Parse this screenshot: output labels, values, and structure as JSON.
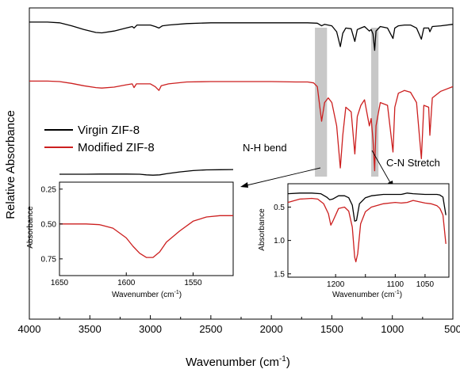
{
  "chart_data": [
    {
      "type": "line",
      "xlabel": "Wavenumber (cm",
      "xlabel_sup": "-1",
      "xlabel_close": ")",
      "ylabel": "Relative Absorbance",
      "xlim": [
        4000,
        500
      ],
      "x_ticks": [
        4000,
        3500,
        3000,
        2500,
        2000,
        1500,
        1000,
        500
      ],
      "y_ticks_shown": false,
      "legend_position": "left",
      "series": [
        {
          "name": "Virgin ZIF-8",
          "color": "#000000",
          "points": [
            [
              4000,
              0.98
            ],
            [
              3850,
              0.98
            ],
            [
              3750,
              0.97
            ],
            [
              3650,
              0.93
            ],
            [
              3550,
              0.88
            ],
            [
              3450,
              0.84
            ],
            [
              3400,
              0.835
            ],
            [
              3300,
              0.86
            ],
            [
              3200,
              0.9
            ],
            [
              3150,
              0.92
            ],
            [
              3135,
              0.9
            ],
            [
              3110,
              0.94
            ],
            [
              3000,
              0.94
            ],
            [
              2960,
              0.92
            ],
            [
              2929,
              0.9
            ],
            [
              2900,
              0.93
            ],
            [
              2850,
              0.94
            ],
            [
              2700,
              0.96
            ],
            [
              2500,
              0.97
            ],
            [
              2300,
              0.97
            ],
            [
              2000,
              0.97
            ],
            [
              1800,
              0.97
            ],
            [
              1700,
              0.97
            ],
            [
              1620,
              0.965
            ],
            [
              1585,
              0.93
            ],
            [
              1560,
              0.95
            ],
            [
              1500,
              0.93
            ],
            [
              1460,
              0.85
            ],
            [
              1430,
              0.65
            ],
            [
              1410,
              0.83
            ],
            [
              1385,
              0.9
            ],
            [
              1340,
              0.89
            ],
            [
              1310,
              0.72
            ],
            [
              1290,
              0.88
            ],
            [
              1260,
              0.9
            ],
            [
              1230,
              0.92
            ],
            [
              1190,
              0.86
            ],
            [
              1175,
              0.88
            ],
            [
              1160,
              0.82
            ],
            [
              1146,
              0.6
            ],
            [
              1135,
              0.86
            ],
            [
              1100,
              0.92
            ],
            [
              1040,
              0.9
            ],
            [
              995,
              0.76
            ],
            [
              980,
              0.9
            ],
            [
              950,
              0.93
            ],
            [
              900,
              0.94
            ],
            [
              850,
              0.94
            ],
            [
              800,
              0.9
            ],
            [
              760,
              0.75
            ],
            [
              740,
              0.9
            ],
            [
              700,
              0.9
            ],
            [
              690,
              0.85
            ],
            [
              670,
              0.92
            ],
            [
              600,
              0.93
            ],
            [
              500,
              0.95
            ]
          ]
        },
        {
          "name": "Modified ZIF-8",
          "color": "#cc1f1f",
          "points": [
            [
              4000,
              0.98
            ],
            [
              3850,
              0.98
            ],
            [
              3750,
              0.975
            ],
            [
              3650,
              0.955
            ],
            [
              3550,
              0.93
            ],
            [
              3450,
              0.91
            ],
            [
              3400,
              0.905
            ],
            [
              3300,
              0.915
            ],
            [
              3200,
              0.94
            ],
            [
              3150,
              0.95
            ],
            [
              3135,
              0.91
            ],
            [
              3115,
              0.95
            ],
            [
              3000,
              0.95
            ],
            [
              2960,
              0.92
            ],
            [
              2929,
              0.88
            ],
            [
              2910,
              0.93
            ],
            [
              2850,
              0.95
            ],
            [
              2700,
              0.97
            ],
            [
              2500,
              0.975
            ],
            [
              2300,
              0.975
            ],
            [
              2000,
              0.975
            ],
            [
              1800,
              0.97
            ],
            [
              1700,
              0.97
            ],
            [
              1650,
              0.96
            ],
            [
              1620,
              0.92
            ],
            [
              1585,
              0.55
            ],
            [
              1560,
              0.75
            ],
            [
              1530,
              0.8
            ],
            [
              1500,
              0.75
            ],
            [
              1460,
              0.5
            ],
            [
              1430,
              0.05
            ],
            [
              1410,
              0.4
            ],
            [
              1385,
              0.7
            ],
            [
              1340,
              0.65
            ],
            [
              1310,
              0.2
            ],
            [
              1290,
              0.6
            ],
            [
              1260,
              0.72
            ],
            [
              1230,
              0.78
            ],
            [
              1190,
              0.5
            ],
            [
              1175,
              0.58
            ],
            [
              1160,
              0.35
            ],
            [
              1146,
              0.02
            ],
            [
              1135,
              0.5
            ],
            [
              1100,
              0.75
            ],
            [
              1040,
              0.72
            ],
            [
              995,
              0.22
            ],
            [
              980,
              0.7
            ],
            [
              950,
              0.85
            ],
            [
              900,
              0.88
            ],
            [
              850,
              0.86
            ],
            [
              800,
              0.75
            ],
            [
              760,
              0.15
            ],
            [
              740,
              0.72
            ],
            [
              700,
              0.7
            ],
            [
              690,
              0.4
            ],
            [
              670,
              0.8
            ],
            [
              600,
              0.87
            ],
            [
              500,
              0.92
            ]
          ]
        }
      ],
      "shaded_bands": [
        [
          1640,
          1540
        ],
        [
          1175,
          1115
        ]
      ],
      "annotations": [
        {
          "text": "N-H bend"
        },
        {
          "text": "C-N Stretch"
        }
      ]
    },
    {
      "type": "line",
      "xlabel": "Wavenumber (cm",
      "xlabel_sup": "-1",
      "xlabel_close": ")",
      "ylabel": "Absorbance",
      "xlim": [
        1650,
        1520
      ],
      "ylim": [
        0.2,
        0.87
      ],
      "y_inverted": true,
      "x_ticks": [
        1650,
        1600,
        1550
      ],
      "y_ticks": [
        "0.25",
        "0.50",
        "0.75"
      ],
      "y_tick_values": [
        0.25,
        0.5,
        0.75
      ],
      "series": [
        {
          "name": "Virgin ZIF-8",
          "color": "#000000",
          "points": [
            [
              1650,
              0.143
            ],
            [
              1640,
              0.143
            ],
            [
              1630,
              0.143
            ],
            [
              1620,
              0.142
            ],
            [
              1610,
              0.142
            ],
            [
              1600,
              0.142
            ],
            [
              1590,
              0.143
            ],
            [
              1585,
              0.148
            ],
            [
              1580,
              0.15
            ],
            [
              1575,
              0.148
            ],
            [
              1570,
              0.14
            ],
            [
              1560,
              0.127
            ],
            [
              1550,
              0.117
            ],
            [
              1540,
              0.112
            ],
            [
              1530,
              0.111
            ],
            [
              1520,
              0.11
            ]
          ]
        },
        {
          "name": "Modified ZIF-8",
          "color": "#cc1f1f",
          "points": [
            [
              1650,
              0.5
            ],
            [
              1640,
              0.5
            ],
            [
              1630,
              0.5
            ],
            [
              1620,
              0.505
            ],
            [
              1610,
              0.53
            ],
            [
              1600,
              0.6
            ],
            [
              1595,
              0.66
            ],
            [
              1590,
              0.71
            ],
            [
              1585,
              0.74
            ],
            [
              1580,
              0.74
            ],
            [
              1575,
              0.7
            ],
            [
              1570,
              0.63
            ],
            [
              1560,
              0.55
            ],
            [
              1550,
              0.48
            ],
            [
              1540,
              0.45
            ],
            [
              1530,
              0.44
            ],
            [
              1520,
              0.44
            ]
          ]
        }
      ]
    },
    {
      "type": "line",
      "xlabel": "Wavenumber (cm",
      "xlabel_sup": "-1",
      "xlabel_close": ")",
      "ylabel": "Absorbance",
      "xlim": [
        1280,
        1010
      ],
      "ylim": [
        0.15,
        1.55
      ],
      "y_inverted": true,
      "x_ticks": [
        1200,
        1150,
        1100,
        1050
      ],
      "x_tick_labels": [
        "1200",
        "",
        "1100",
        "1050"
      ],
      "y_ticks": [
        "0.5",
        "1.0",
        "1.5"
      ],
      "y_tick_values": [
        0.5,
        1.0,
        1.5
      ],
      "series": [
        {
          "name": "Virgin ZIF-8",
          "color": "#000000",
          "points": [
            [
              1280,
              0.3
            ],
            [
              1260,
              0.29
            ],
            [
              1240,
              0.29
            ],
            [
              1225,
              0.3
            ],
            [
              1215,
              0.35
            ],
            [
              1210,
              0.39
            ],
            [
              1205,
              0.38
            ],
            [
              1195,
              0.33
            ],
            [
              1185,
              0.33
            ],
            [
              1178,
              0.36
            ],
            [
              1172,
              0.47
            ],
            [
              1168,
              0.71
            ],
            [
              1165,
              0.7
            ],
            [
              1160,
              0.45
            ],
            [
              1150,
              0.36
            ],
            [
              1140,
              0.33
            ],
            [
              1120,
              0.31
            ],
            [
              1100,
              0.31
            ],
            [
              1090,
              0.31
            ],
            [
              1080,
              0.29
            ],
            [
              1070,
              0.3
            ],
            [
              1050,
              0.31
            ],
            [
              1040,
              0.31
            ],
            [
              1030,
              0.31
            ],
            [
              1025,
              0.32
            ],
            [
              1020,
              0.35
            ],
            [
              1015,
              0.62
            ]
          ]
        },
        {
          "name": "Modified ZIF-8",
          "color": "#cc1f1f",
          "points": [
            [
              1280,
              0.43
            ],
            [
              1260,
              0.38
            ],
            [
              1240,
              0.37
            ],
            [
              1230,
              0.38
            ],
            [
              1220,
              0.45
            ],
            [
              1212,
              0.6
            ],
            [
              1208,
              0.77
            ],
            [
              1204,
              0.7
            ],
            [
              1195,
              0.52
            ],
            [
              1185,
              0.5
            ],
            [
              1178,
              0.56
            ],
            [
              1172,
              0.8
            ],
            [
              1168,
              1.25
            ],
            [
              1166,
              1.32
            ],
            [
              1163,
              1.2
            ],
            [
              1158,
              0.75
            ],
            [
              1150,
              0.57
            ],
            [
              1140,
              0.5
            ],
            [
              1120,
              0.45
            ],
            [
              1100,
              0.43
            ],
            [
              1090,
              0.44
            ],
            [
              1080,
              0.43
            ],
            [
              1070,
              0.4
            ],
            [
              1050,
              0.44
            ],
            [
              1040,
              0.45
            ],
            [
              1030,
              0.48
            ],
            [
              1025,
              0.52
            ],
            [
              1020,
              0.62
            ],
            [
              1015,
              1.05
            ]
          ]
        }
      ]
    }
  ]
}
